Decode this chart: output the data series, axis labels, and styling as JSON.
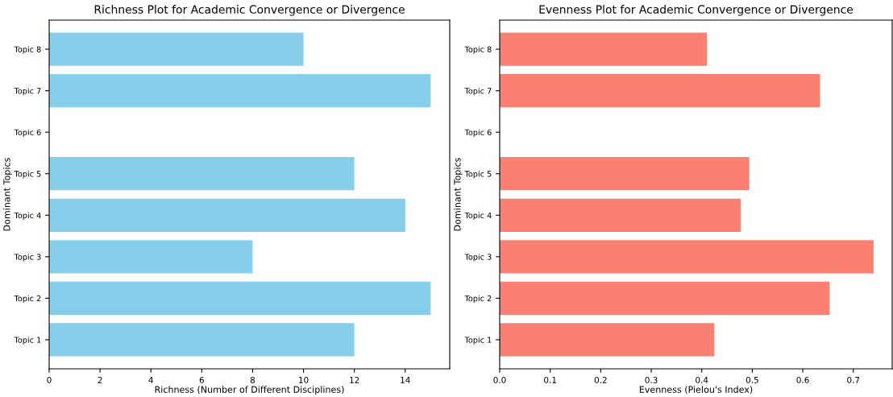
{
  "chart_data": [
    {
      "type": "bar",
      "orientation": "horizontal",
      "title": "Richness Plot for Academic Convergence or Divergence",
      "xlabel": "Richness (Number of Different Disciplines)",
      "ylabel": "Dominant Topics",
      "categories": [
        "Topic 8",
        "Topic 7",
        "Topic 6",
        "Topic 5",
        "Topic 4",
        "Topic 3",
        "Topic 2",
        "Topic 1"
      ],
      "values": [
        10,
        15,
        null,
        12,
        14,
        8,
        15,
        12
      ],
      "color": "#87ceeb",
      "xlim": [
        0,
        15.75
      ],
      "xticks": [
        0,
        2,
        4,
        6,
        8,
        10,
        12,
        14
      ],
      "grid": false
    },
    {
      "type": "bar",
      "orientation": "horizontal",
      "title": "Evenness Plot for Academic Convergence or Divergence",
      "xlabel": "Evenness (Pielou's Index)",
      "ylabel": "Dominant Topics",
      "categories": [
        "Topic 8",
        "Topic 7",
        "Topic 6",
        "Topic 5",
        "Topic 4",
        "Topic 3",
        "Topic 2",
        "Topic 1"
      ],
      "values": [
        0.41,
        0.634,
        null,
        0.494,
        0.477,
        0.74,
        0.653,
        0.425
      ],
      "color": "#fa8072",
      "xlim": [
        0,
        0.777
      ],
      "xticks": [
        {
          "value": 0,
          "label": "0.0"
        },
        0.1,
        0.2,
        0.3,
        0.4,
        0.5,
        0.6,
        0.7
      ],
      "grid": false
    }
  ]
}
